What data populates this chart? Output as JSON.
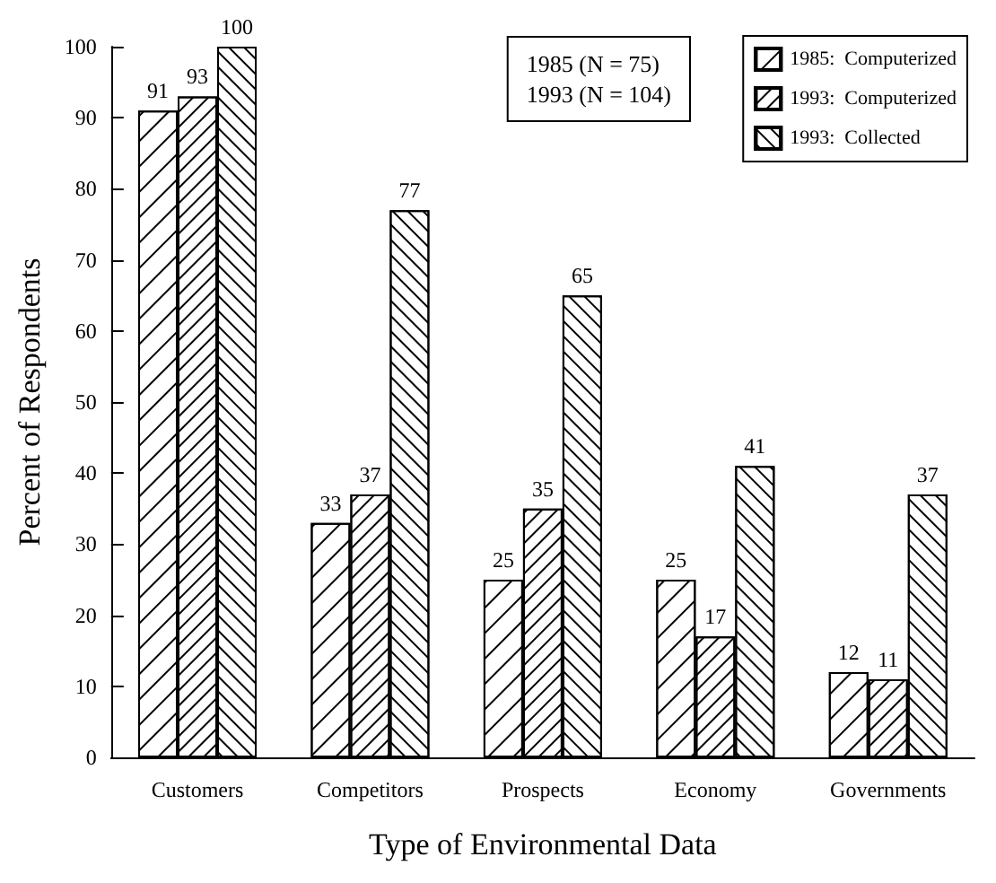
{
  "chart_data": {
    "type": "bar",
    "xlabel": "Type of Environmental Data",
    "ylabel": "Percent of Respondents",
    "categories": [
      "Customers",
      "Competitors",
      "Prospects",
      "Economy",
      "Governments"
    ],
    "series": [
      {
        "name": "1985:  Computerized",
        "color": "#ffffff",
        "values": [
          91,
          33,
          25,
          25,
          12
        ]
      },
      {
        "name": "1993:  Computerized",
        "color": "#ffffff",
        "values": [
          93,
          37,
          35,
          17,
          11
        ]
      },
      {
        "name": "1993:  Collected",
        "color": "#ffffff",
        "values": [
          100,
          77,
          65,
          41,
          37
        ]
      }
    ],
    "ylim": [
      0,
      100
    ],
    "yticks": [
      0,
      10,
      20,
      30,
      40,
      50,
      60,
      70,
      80,
      90,
      100
    ],
    "annotations": [
      "1985 (N = 75)\n1993 (N = 104)"
    ],
    "data_labels": true,
    "grid": false,
    "legend": "top right"
  }
}
